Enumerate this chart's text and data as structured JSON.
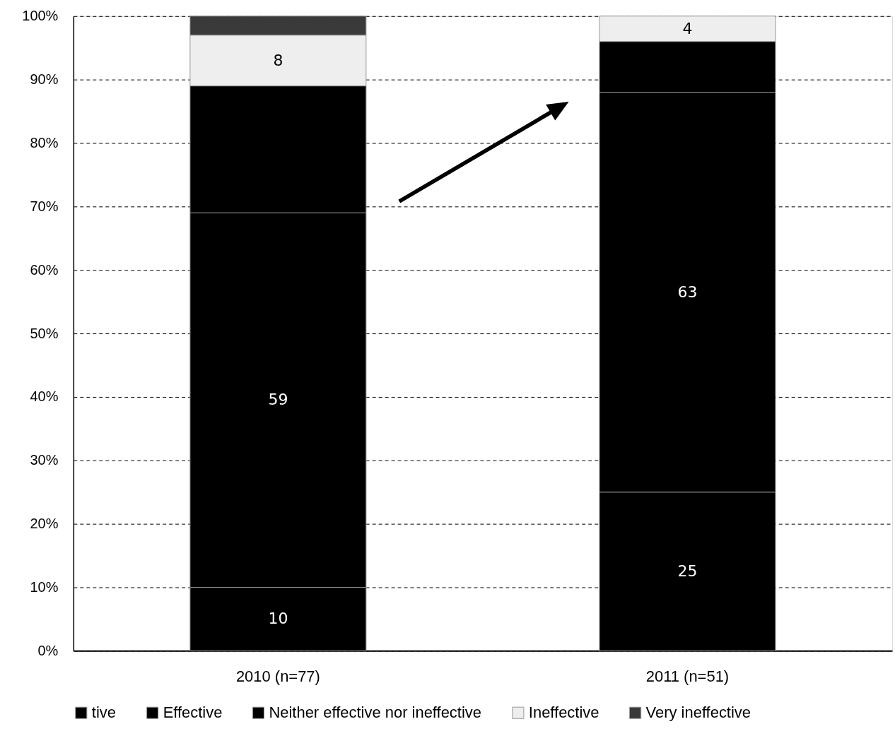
{
  "chart_data": {
    "type": "bar",
    "stacked": true,
    "categories": [
      "2010 (n=77)",
      "2011 (n=51)"
    ],
    "series": [
      {
        "name": "tive",
        "color": "#000000",
        "values": [
          10,
          25
        ],
        "value_labels": [
          "10",
          "25"
        ]
      },
      {
        "name": "Effective",
        "color": "#000000",
        "values": [
          59,
          63
        ],
        "value_labels": [
          "59",
          "63"
        ]
      },
      {
        "name": "Neither effective nor ineffective",
        "color": "#000000",
        "values": [
          20,
          8
        ],
        "value_labels": [
          null,
          null
        ]
      },
      {
        "name": "Ineffective",
        "color": "#eeeeee",
        "values": [
          8,
          4
        ],
        "value_labels": [
          "8",
          "4"
        ]
      },
      {
        "name": "Very ineffective",
        "color": "#3a3a3a",
        "values": [
          3,
          null
        ],
        "value_labels": [
          null,
          null
        ]
      }
    ],
    "ylim": [
      0,
      100
    ],
    "yticks": [
      {
        "value": 0,
        "label": "0%"
      },
      {
        "value": 10,
        "label": "10%"
      },
      {
        "value": 20,
        "label": "20%"
      },
      {
        "value": 30,
        "label": "30%"
      },
      {
        "value": 40,
        "label": "40%"
      },
      {
        "value": 50,
        "label": "50%"
      },
      {
        "value": 60,
        "label": "60%"
      },
      {
        "value": 70,
        "label": "70%"
      },
      {
        "value": 80,
        "label": "80%"
      },
      {
        "value": 90,
        "label": "90%"
      },
      {
        "value": 100,
        "label": "100%"
      }
    ],
    "grid": "y",
    "legend": "bottom"
  }
}
